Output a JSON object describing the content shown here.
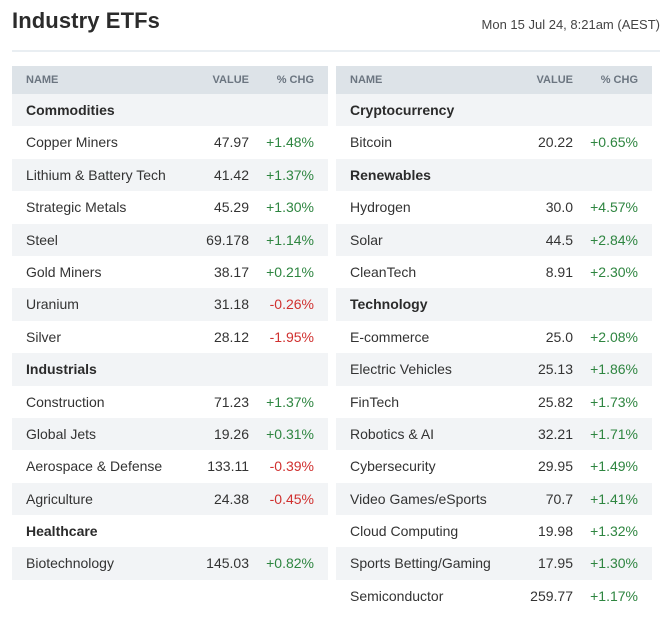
{
  "page": {
    "title": "Industry ETFs",
    "timestamp": "Mon 15 Jul 24, 8:21am (AEST)"
  },
  "columns": {
    "name": "NAME",
    "value": "VALUE",
    "chg": "% CHG"
  },
  "colors": {
    "positive": "#2e8540",
    "negative": "#d0302f",
    "header_bg": "#dde3e8",
    "row_shade": "#f2f4f6"
  },
  "left": {
    "commodities": {
      "label": "Commodities",
      "rows": [
        {
          "name": "Copper Miners",
          "value": "47.97",
          "chg": "+1.48%"
        },
        {
          "name": "Lithium & Battery Tech",
          "value": "41.42",
          "chg": "+1.37%"
        },
        {
          "name": "Strategic Metals",
          "value": "45.29",
          "chg": "+1.30%"
        },
        {
          "name": "Steel",
          "value": "69.178",
          "chg": "+1.14%"
        },
        {
          "name": "Gold Miners",
          "value": "38.17",
          "chg": "+0.21%"
        },
        {
          "name": "Uranium",
          "value": "31.18",
          "chg": "-0.26%"
        },
        {
          "name": "Silver",
          "value": "28.12",
          "chg": "-1.95%"
        }
      ]
    },
    "industrials": {
      "label": "Industrials",
      "rows": [
        {
          "name": "Construction",
          "value": "71.23",
          "chg": "+1.37%"
        },
        {
          "name": "Global Jets",
          "value": "19.26",
          "chg": "+0.31%"
        },
        {
          "name": "Aerospace & Defense",
          "value": "133.11",
          "chg": "-0.39%"
        },
        {
          "name": "Agriculture",
          "value": "24.38",
          "chg": "-0.45%"
        }
      ]
    },
    "healthcare": {
      "label": "Healthcare",
      "rows": [
        {
          "name": "Biotechnology",
          "value": "145.03",
          "chg": "+0.82%"
        }
      ]
    }
  },
  "right": {
    "cryptocurrency": {
      "label": "Cryptocurrency",
      "rows": [
        {
          "name": "Bitcoin",
          "value": "20.22",
          "chg": "+0.65%"
        }
      ]
    },
    "renewables": {
      "label": "Renewables",
      "rows": [
        {
          "name": "Hydrogen",
          "value": "30.0",
          "chg": "+4.57%"
        },
        {
          "name": "Solar",
          "value": "44.5",
          "chg": "+2.84%"
        },
        {
          "name": "CleanTech",
          "value": "8.91",
          "chg": "+2.30%"
        }
      ]
    },
    "technology": {
      "label": "Technology",
      "rows": [
        {
          "name": "E-commerce",
          "value": "25.0",
          "chg": "+2.08%"
        },
        {
          "name": "Electric Vehicles",
          "value": "25.13",
          "chg": "+1.86%"
        },
        {
          "name": "FinTech",
          "value": "25.82",
          "chg": "+1.73%"
        },
        {
          "name": "Robotics & AI",
          "value": "32.21",
          "chg": "+1.71%"
        },
        {
          "name": "Cybersecurity",
          "value": "29.95",
          "chg": "+1.49%"
        },
        {
          "name": "Video Games/eSports",
          "value": "70.7",
          "chg": "+1.41%"
        },
        {
          "name": "Cloud Computing",
          "value": "19.98",
          "chg": "+1.32%"
        },
        {
          "name": "Sports Betting/Gaming",
          "value": "17.95",
          "chg": "+1.30%"
        },
        {
          "name": "Semiconductor",
          "value": "259.77",
          "chg": "+1.17%"
        }
      ]
    }
  }
}
